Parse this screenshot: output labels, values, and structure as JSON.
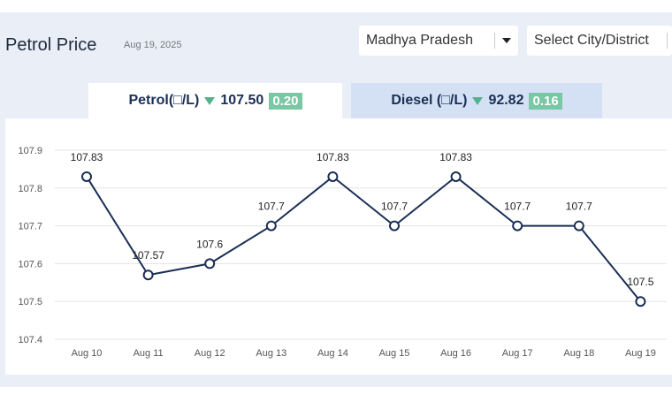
{
  "header": {
    "title": "Petrol Price",
    "date": "Aug 19, 2025"
  },
  "filters": {
    "state": "Madhya Pradesh",
    "city_placeholder": "Select City/District"
  },
  "tabs": {
    "petrol": {
      "label": "Petrol(□/L)",
      "price": "107.50",
      "change": "0.20"
    },
    "diesel": {
      "label": "Diesel (□/L)",
      "price": "92.82",
      "change": "0.16"
    }
  },
  "colors": {
    "line": "#1b2f55",
    "badge": "#79c7a3",
    "down_arrow": "#55b08e",
    "panel": "#e9eef7",
    "inactive_tab": "#d4e1f5"
  },
  "chart_data": {
    "type": "line",
    "categories": [
      "Aug 10",
      "Aug 11",
      "Aug 12",
      "Aug 13",
      "Aug 14",
      "Aug 15",
      "Aug 16",
      "Aug 17",
      "Aug 18",
      "Aug 19"
    ],
    "values": [
      107.83,
      107.57,
      107.6,
      107.7,
      107.83,
      107.7,
      107.83,
      107.7,
      107.7,
      107.5
    ],
    "data_labels": [
      "107.83",
      "107.57",
      "107.6",
      "107.7",
      "107.83",
      "107.7",
      "107.83",
      "107.7",
      "107.7",
      "107.5"
    ],
    "yticks": [
      "107.4",
      "107.5",
      "107.6",
      "107.7",
      "107.8",
      "107.9"
    ],
    "ylim": [
      107.4,
      107.9
    ],
    "grid": true,
    "title": "",
    "xlabel": "",
    "ylabel": ""
  }
}
